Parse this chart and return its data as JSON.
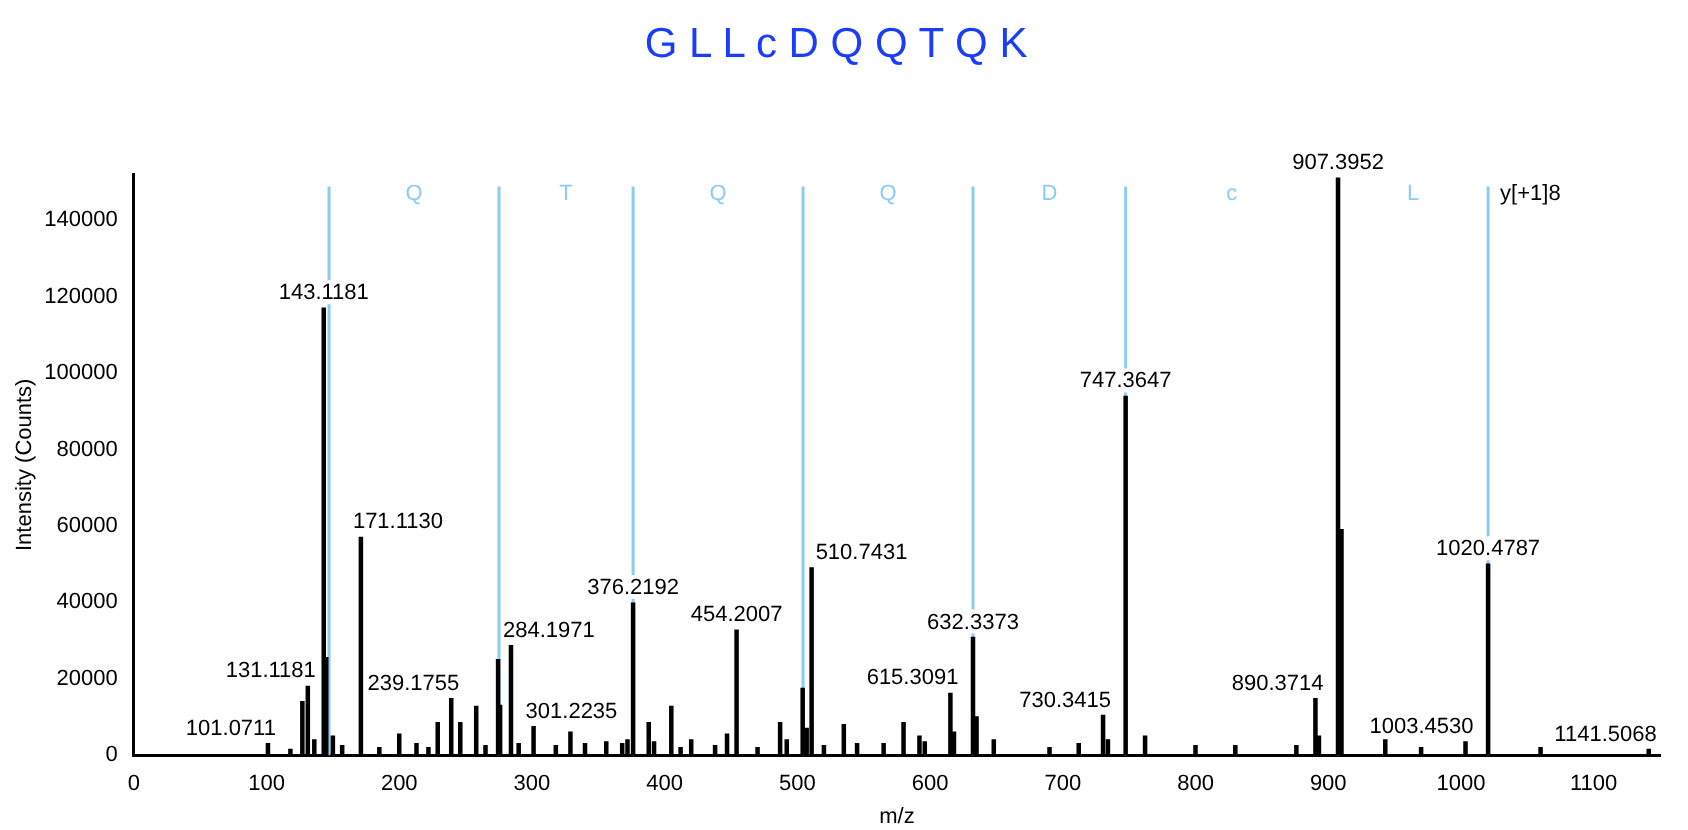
{
  "chart_data": {
    "type": "bar",
    "title": "G L L c D Q Q T Q K",
    "xlabel": "m/z",
    "ylabel": "Intensity (Counts)",
    "x": [
      101.0711,
      118,
      127,
      131.1181,
      136,
      143.1181,
      145,
      150,
      157,
      171.113,
      185,
      200,
      213,
      222,
      229,
      239.1755,
      246,
      258,
      265,
      274.5,
      276,
      284.1971,
      290,
      301.2235,
      318,
      329,
      340,
      356,
      368,
      372,
      376.2192,
      388,
      392,
      405,
      412,
      420,
      438,
      447,
      454.2007,
      470,
      487,
      492,
      504,
      507,
      510.7431,
      520,
      535,
      545,
      565,
      580,
      592,
      596,
      615.3091,
      618,
      632.3373,
      635,
      648,
      690,
      712,
      730.3415,
      734,
      747.3647,
      762,
      800,
      830,
      876,
      890.3714,
      893,
      907.3952,
      910,
      943,
      970,
      1003.453,
      1020.4787,
      1060,
      1141.5068
    ],
    "values": [
      3000,
      1500,
      14000,
      18000,
      4000,
      117000,
      25500,
      5000,
      2500,
      57000,
      2000,
      5500,
      3000,
      2000,
      8500,
      14800,
      8500,
      12800,
      2500,
      25000,
      13000,
      28700,
      3000,
      7500,
      2500,
      6000,
      3000,
      3500,
      3000,
      4000,
      39800,
      8500,
      3500,
      12800,
      2000,
      4000,
      2500,
      5500,
      32700,
      2000,
      8500,
      4000,
      17500,
      7000,
      49000,
      2500,
      8000,
      3000,
      3000,
      8500,
      5000,
      3500,
      16200,
      6000,
      30800,
      10000,
      4000,
      2000,
      3000,
      10400,
      4000,
      93900,
      5000,
      2500,
      2500,
      2500,
      14800,
      5000,
      151000,
      59000,
      4000,
      2000,
      3500,
      50000,
      2000,
      1500
    ],
    "color": "#000000",
    "xlim": [
      0,
      1150
    ],
    "xticks": [
      0,
      100,
      200,
      300,
      400,
      500,
      600,
      700,
      800,
      900,
      1000,
      1100
    ],
    "ylim": [
      0,
      152000
    ],
    "yticks": [
      0,
      20000,
      40000,
      60000,
      80000,
      100000,
      120000,
      140000
    ],
    "grid": false,
    "legend": false,
    "ref_lines": [
      {
        "axis": "x",
        "value": 147.11,
        "color": "#8ccbf5"
      },
      {
        "axis": "x",
        "value": 275.17,
        "color": "#8ccbf5"
      },
      {
        "axis": "x",
        "value": 376.22,
        "color": "#8ccbf5"
      },
      {
        "axis": "x",
        "value": 504.28,
        "color": "#8ccbf5"
      },
      {
        "axis": "x",
        "value": 632.34,
        "color": "#8ccbf5"
      },
      {
        "axis": "x",
        "value": 747.36,
        "color": "#8ccbf5"
      },
      {
        "axis": "x",
        "value": 907.4,
        "color": "#8ccbf5"
      },
      {
        "axis": "x",
        "value": 1020.48,
        "color": "#8ccbf5"
      }
    ],
    "annotations": [
      "Q",
      "T",
      "Q",
      "Q",
      "D",
      "c",
      "L",
      "y[+1]8",
      {
        "text": "101.0711",
        "x": 101.0711,
        "y": 3000
      },
      {
        "text": "131.1181",
        "x": 131.1181,
        "y": 18000
      },
      {
        "text": "143.1181",
        "x": 143.1181,
        "y": 117000
      },
      {
        "text": "171.1130",
        "x": 171.113,
        "y": 57000
      },
      {
        "text": "239.1755",
        "x": 239.1755,
        "y": 14800
      },
      {
        "text": "284.1971",
        "x": 284.1971,
        "y": 28700
      },
      {
        "text": "301.2235",
        "x": 301.2235,
        "y": 7500
      },
      {
        "text": "376.2192",
        "x": 376.2192,
        "y": 39800
      },
      {
        "text": "454.2007",
        "x": 454.2007,
        "y": 32700
      },
      {
        "text": "510.7431",
        "x": 510.7431,
        "y": 49000
      },
      {
        "text": "615.3091",
        "x": 615.3091,
        "y": 16200
      },
      {
        "text": "632.3373",
        "x": 632.3373,
        "y": 30800
      },
      {
        "text": "730.3415",
        "x": 730.3415,
        "y": 10400
      },
      {
        "text": "747.3647",
        "x": 747.3647,
        "y": 93900
      },
      {
        "text": "890.3714",
        "x": 890.3714,
        "y": 14800
      },
      {
        "text": "907.3952",
        "x": 907.3952,
        "y": 151000
      },
      {
        "text": "1003.4530",
        "x": 1003.453,
        "y": 3500
      },
      {
        "text": "1020.4787",
        "x": 1020.4787,
        "y": 50000
      },
      {
        "text": "1141.5068",
        "x": 1141.5068,
        "y": 1500
      }
    ]
  }
}
